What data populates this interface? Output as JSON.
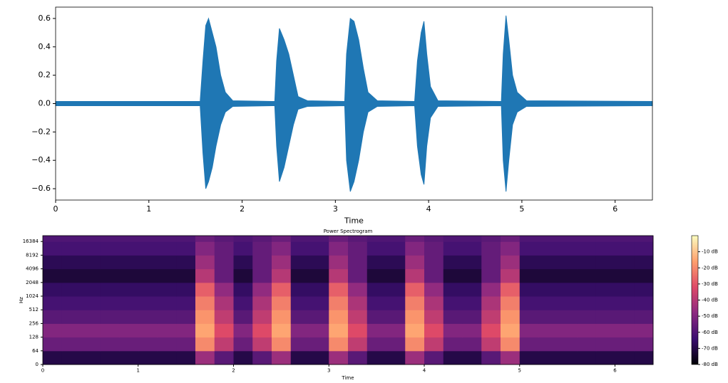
{
  "chart_data": [
    {
      "type": "area",
      "xlabel": "Time",
      "x": [
        0,
        1.55,
        1.58,
        1.61,
        1.64,
        1.68,
        1.72,
        1.77,
        1.82,
        1.9,
        2.35,
        2.37,
        2.4,
        2.45,
        2.5,
        2.55,
        2.6,
        2.7,
        3.1,
        3.12,
        3.16,
        3.2,
        3.25,
        3.3,
        3.35,
        3.45,
        3.85,
        3.88,
        3.92,
        3.95,
        3.98,
        4.02,
        4.1,
        4.78,
        4.8,
        4.83,
        4.86,
        4.9,
        4.95,
        5.05,
        6.4
      ],
      "series": [
        {
          "color": "#1f77b4",
          "values": [
            0.015,
            0.015,
            0.3,
            0.55,
            0.6,
            0.5,
            0.4,
            0.2,
            0.08,
            0.02,
            0.015,
            0.3,
            0.53,
            0.45,
            0.35,
            0.2,
            0.05,
            0.02,
            0.015,
            0.35,
            0.6,
            0.58,
            0.45,
            0.25,
            0.08,
            0.02,
            0.015,
            0.3,
            0.5,
            0.58,
            0.35,
            0.12,
            0.02,
            0.015,
            0.35,
            0.62,
            0.45,
            0.2,
            0.08,
            0.02,
            0.015
          ]
        },
        {
          "color": "#1f77b4",
          "values": [
            -0.015,
            -0.015,
            -0.35,
            -0.6,
            -0.55,
            -0.45,
            -0.3,
            -0.15,
            -0.06,
            -0.02,
            -0.015,
            -0.3,
            -0.55,
            -0.45,
            -0.3,
            -0.15,
            -0.04,
            -0.02,
            -0.015,
            -0.4,
            -0.62,
            -0.55,
            -0.4,
            -0.2,
            -0.06,
            -0.02,
            -0.015,
            -0.3,
            -0.5,
            -0.57,
            -0.3,
            -0.1,
            -0.02,
            -0.015,
            -0.4,
            -0.62,
            -0.4,
            -0.15,
            -0.06,
            -0.02,
            -0.015
          ]
        }
      ],
      "xlim": [
        0,
        6.4
      ],
      "xticks": [
        0,
        1,
        2,
        3,
        4,
        5,
        6
      ],
      "ylim": [
        -0.68,
        0.68
      ],
      "yticks": [
        {
          "value": -0.6,
          "label": "−0.6"
        },
        {
          "value": -0.4,
          "label": "−0.4"
        },
        {
          "value": -0.2,
          "label": "−0.2"
        },
        {
          "value": 0,
          "label": "0.0"
        },
        0.2,
        0.4,
        0.6
      ]
    },
    {
      "type": "heatmap",
      "title": "Power Spectrogram",
      "xlabel": "Time",
      "ylabel": "Hz",
      "yscale": "symlog",
      "xbins": [
        0,
        0.2,
        0.4,
        0.6,
        0.8,
        1,
        1.2,
        1.4,
        1.6,
        1.8,
        2,
        2.2,
        2.4,
        2.6,
        2.8,
        3,
        3.2,
        3.4,
        3.6,
        3.8,
        4,
        4.2,
        4.4,
        4.6,
        4.8,
        5,
        5.2,
        5.4,
        5.6,
        5.8,
        6,
        6.2,
        6.4
      ],
      "values": [
        [
          -70,
          -70,
          -70,
          -70,
          -70,
          -70,
          -70,
          -70,
          -45,
          -58,
          -70,
          -58,
          -45,
          -70,
          -70,
          -45,
          -58,
          -70,
          -70,
          -45,
          -58,
          -70,
          -70,
          -58,
          -45,
          -70,
          -70,
          -70,
          -70,
          -70,
          -70,
          -70
        ],
        [
          -55,
          -55,
          -55,
          -55,
          -55,
          -55,
          -55,
          -55,
          -20,
          -38,
          -55,
          -38,
          -20,
          -55,
          -55,
          -20,
          -38,
          -55,
          -55,
          -20,
          -38,
          -55,
          -55,
          -38,
          -20,
          -55,
          -55,
          -55,
          -55,
          -55,
          -55,
          -55
        ],
        [
          -50,
          -50,
          -50,
          -50,
          -50,
          -50,
          -50,
          -50,
          -15,
          -32,
          -50,
          -32,
          -15,
          -50,
          -50,
          -15,
          -32,
          -50,
          -50,
          -15,
          -32,
          -50,
          -50,
          -32,
          -15,
          -50,
          -50,
          -50,
          -50,
          -50,
          -50,
          -50
        ],
        [
          -58,
          -58,
          -58,
          -58,
          -58,
          -58,
          -58,
          -58,
          -18,
          -38,
          -58,
          -38,
          -18,
          -58,
          -58,
          -18,
          -38,
          -58,
          -58,
          -18,
          -38,
          -58,
          -58,
          -38,
          -18,
          -58,
          -58,
          -58,
          -58,
          -58,
          -58,
          -58
        ],
        [
          -62,
          -62,
          -62,
          -62,
          -62,
          -62,
          -62,
          -62,
          -22,
          -42,
          -62,
          -42,
          -22,
          -62,
          -62,
          -22,
          -42,
          -62,
          -62,
          -22,
          -42,
          -62,
          -62,
          -42,
          -22,
          -62,
          -62,
          -62,
          -62,
          -62,
          -62,
          -62
        ],
        [
          -66,
          -66,
          -66,
          -66,
          -66,
          -66,
          -66,
          -66,
          -28,
          -47,
          -66,
          -47,
          -28,
          -66,
          -66,
          -28,
          -47,
          -66,
          -66,
          -28,
          -47,
          -66,
          -66,
          -47,
          -28,
          -66,
          -66,
          -66,
          -66,
          -66,
          -66,
          -66
        ],
        [
          -72,
          -72,
          -72,
          -72,
          -72,
          -72,
          -72,
          -72,
          -40,
          -56,
          -72,
          -56,
          -40,
          -72,
          -72,
          -40,
          -56,
          -72,
          -72,
          -40,
          -56,
          -72,
          -72,
          -56,
          -40,
          -72,
          -72,
          -72,
          -72,
          -72,
          -72,
          -72
        ],
        [
          -68,
          -68,
          -68,
          -68,
          -68,
          -68,
          -68,
          -68,
          -45,
          -56,
          -68,
          -56,
          -45,
          -68,
          -68,
          -45,
          -56,
          -68,
          -68,
          -45,
          -56,
          -68,
          -68,
          -56,
          -45,
          -68,
          -68,
          -68,
          -68,
          -68,
          -68,
          -68
        ],
        [
          -62,
          -62,
          -62,
          -62,
          -62,
          -62,
          -62,
          -62,
          -50,
          -56,
          -62,
          -56,
          -50,
          -62,
          -62,
          -50,
          -56,
          -62,
          -62,
          -50,
          -56,
          -62,
          -62,
          -56,
          -50,
          -62,
          -62,
          -62,
          -62,
          -62,
          -62,
          -62
        ],
        [
          -60,
          -60,
          -60,
          -60,
          -60,
          -60,
          -60,
          -60,
          -55,
          -58,
          -60,
          -58,
          -55,
          -60,
          -60,
          -55,
          -58,
          -60,
          -60,
          -55,
          -58,
          -60,
          -60,
          -58,
          -55,
          -60,
          -60,
          -60,
          -60,
          -60,
          -60,
          -60
        ]
      ],
      "xlim": [
        0,
        6.4
      ],
      "xticks": [
        0,
        1,
        2,
        3,
        4,
        5,
        6
      ],
      "ylim": [
        0,
        22050
      ],
      "yticks": [
        0,
        64,
        128,
        256,
        512,
        1024,
        2048,
        4096,
        8192,
        16384
      ],
      "colormap": [
        "#000004",
        "#3b0f70",
        "#8c2981",
        "#de4968",
        "#fe9f6d",
        "#fcfdbf"
      ],
      "clim": [
        -80,
        0
      ],
      "cticks": [
        {
          "value": -10,
          "label": "-10 dB"
        },
        {
          "value": -20,
          "label": "-20 dB"
        },
        {
          "value": -30,
          "label": "-30 dB"
        },
        {
          "value": -40,
          "label": "-40 dB"
        },
        {
          "value": -50,
          "label": "-50 dB"
        },
        {
          "value": -60,
          "label": "-60 dB"
        },
        {
          "value": -70,
          "label": "-70 dB"
        },
        {
          "value": -80,
          "label": "-80 dB"
        }
      ]
    }
  ]
}
